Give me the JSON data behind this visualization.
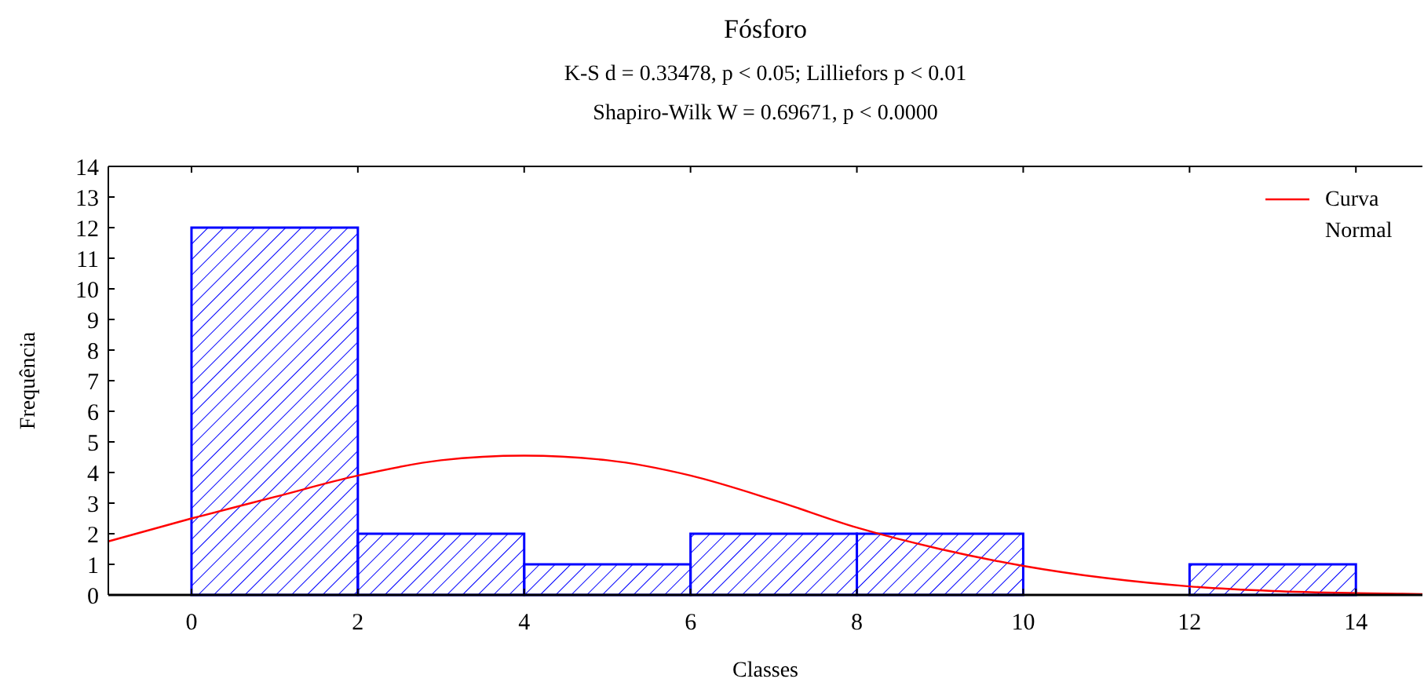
{
  "chart_data": {
    "type": "histogram",
    "title": "Fósforo",
    "subtitle": "K-S d = 0.33478,  p < 0.05;  Lilliefors  p < 0.01\nShapiro-Wilk W = 0.69671,  p < 0.0000",
    "xlabel": "Classes",
    "ylabel": "Frequência",
    "bins": [
      0,
      2,
      4,
      6,
      8,
      10,
      12,
      14
    ],
    "series": [
      {
        "color": "#0000ff",
        "values": [
          12,
          2,
          1,
          2,
          2,
          0,
          1
        ]
      },
      {
        "type": "line",
        "name": "Curva Normal",
        "color": "#ff0000",
        "x": [
          -1,
          0,
          1,
          2,
          3,
          4,
          5,
          6,
          7,
          8,
          9,
          10,
          11,
          12,
          13,
          14,
          14.8
        ],
        "values": [
          1.75,
          2.5,
          3.2,
          3.9,
          4.4,
          4.55,
          4.4,
          3.9,
          3.1,
          2.2,
          1.5,
          0.95,
          0.55,
          0.28,
          0.13,
          0.06,
          0.03
        ]
      }
    ],
    "xlim": [
      -1,
      14.8
    ],
    "xticks": [
      0,
      2,
      4,
      6,
      8,
      10,
      12,
      14
    ],
    "ylim": [
      0,
      14
    ],
    "yticks": [
      0,
      1,
      2,
      3,
      4,
      5,
      6,
      7,
      8,
      9,
      10,
      11,
      12,
      13,
      14
    ],
    "grid": false,
    "legend": "top right",
    "marker": "none",
    "line_style": "solid"
  }
}
